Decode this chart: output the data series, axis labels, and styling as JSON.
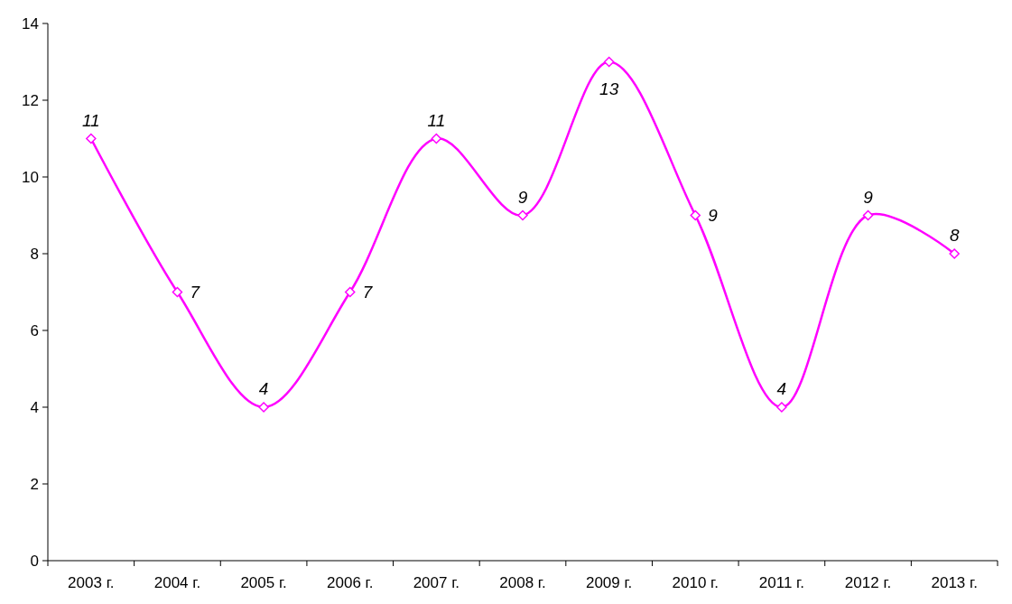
{
  "chart_data": {
    "type": "line",
    "categories": [
      "2003 г.",
      "2004 г.",
      "2005 г.",
      "2006 г.",
      "2007 г.",
      "2008 г.",
      "2009 г.",
      "2010 г.",
      "2011 г.",
      "2012 г.",
      "2013 г."
    ],
    "series": [
      {
        "color": "#ff00ff",
        "values": [
          11,
          7,
          4,
          7,
          11,
          9,
          13,
          9,
          4,
          9,
          8
        ]
      }
    ],
    "ylim": [
      0,
      14
    ],
    "yticks": [
      0,
      2,
      4,
      6,
      8,
      10,
      12,
      14
    ],
    "marker": "diamond",
    "line_style": "solid",
    "data_labels": true
  }
}
